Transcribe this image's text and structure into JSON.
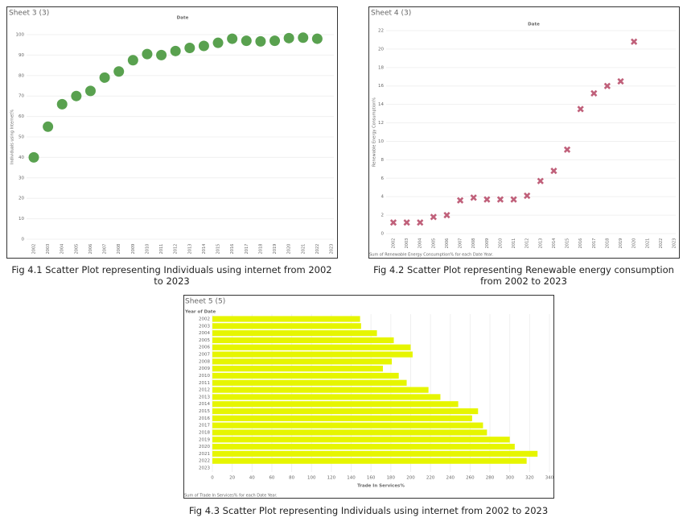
{
  "chart_data": [
    {
      "type": "scatter",
      "marker": "circle",
      "caption": "Fig 4.1 Scatter Plot representing Individuals using internet from 2002 to 2023",
      "sheet_title": "Sheet 3 (3)",
      "x_header": "Date",
      "y_label": "Individuals using Internet%",
      "categories": [
        "2002",
        "2003",
        "2004",
        "2005",
        "2006",
        "2007",
        "2008",
        "2009",
        "2010",
        "2011",
        "2012",
        "2013",
        "2014",
        "2015",
        "2016",
        "2017",
        "2018",
        "2019",
        "2020",
        "2021",
        "2022",
        "2023"
      ],
      "color": "#59a14f",
      "values": [
        40,
        55,
        66,
        70,
        72.5,
        79,
        82,
        87.5,
        90.5,
        90,
        92,
        93.5,
        94.5,
        96,
        98,
        97,
        96.7,
        97,
        98.3,
        98.5,
        98,
        null
      ],
      "ylim": [
        0,
        100
      ],
      "yticks": [
        0,
        10,
        20,
        30,
        40,
        50,
        60,
        70,
        80,
        90,
        100
      ],
      "grid": true
    },
    {
      "type": "scatter",
      "marker": "x",
      "caption": "Fig 4.2 Scatter Plot representing Renewable energy consumption from 2002 to 2023",
      "sheet_title": "Sheet 4 (3)",
      "x_header": "Date",
      "y_label": "Renewable Energy Consumption%",
      "footer": "Sum of Renewable Energy Consumption% for each Date Year.",
      "categories": [
        "2002",
        "2003",
        "2004",
        "2005",
        "2006",
        "2007",
        "2008",
        "2009",
        "2010",
        "2011",
        "2012",
        "2013",
        "2014",
        "2015",
        "2016",
        "2017",
        "2018",
        "2019",
        "2020",
        "2021",
        "2022",
        "2023"
      ],
      "color": "#c0607a",
      "values": [
        1.2,
        1.2,
        1.2,
        1.8,
        2.0,
        3.6,
        3.9,
        3.7,
        3.7,
        3.7,
        4.1,
        5.7,
        6.8,
        9.1,
        13.5,
        15.2,
        16.0,
        16.5,
        20.8,
        null,
        null,
        null
      ],
      "ylim": [
        0,
        22
      ],
      "yticks": [
        0,
        2,
        4,
        6,
        8,
        10,
        12,
        14,
        16,
        18,
        20,
        22
      ],
      "grid": true
    },
    {
      "type": "bar",
      "orientation": "horizontal",
      "caption": "Fig 4.3 Scatter Plot representing Individuals using internet from 2002 to 2023",
      "sheet_title": "Sheet 5 (5)",
      "y_header": "Year of Date",
      "x_label": "Trade In Services%",
      "footer": "Sum of Trade In Services% for each Date Year.",
      "categories": [
        "2002",
        "2003",
        "2004",
        "2005",
        "2006",
        "2007",
        "2008",
        "2009",
        "2010",
        "2011",
        "2012",
        "2013",
        "2014",
        "2015",
        "2016",
        "2017",
        "2018",
        "2019",
        "2020",
        "2021",
        "2022",
        "2023"
      ],
      "color": "#e6f500",
      "values": [
        149,
        150,
        166,
        183,
        200,
        202,
        181,
        172,
        188,
        196,
        218,
        230,
        248,
        268,
        262,
        273,
        277,
        300,
        305,
        328,
        317,
        null
      ],
      "xlim": [
        0,
        340
      ],
      "xticks": [
        0,
        20,
        40,
        60,
        80,
        100,
        120,
        140,
        160,
        180,
        200,
        220,
        240,
        260,
        280,
        300,
        320,
        340
      ],
      "grid": true
    }
  ]
}
